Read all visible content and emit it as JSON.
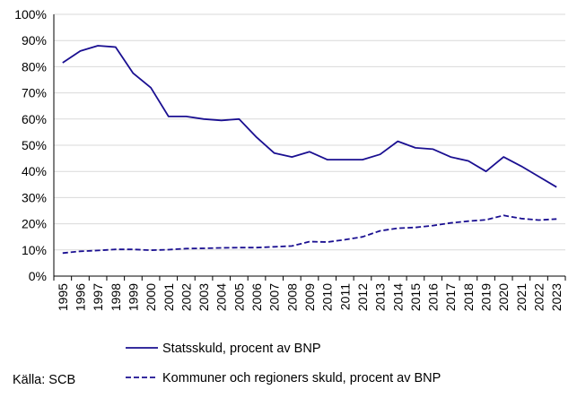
{
  "chart_data": {
    "type": "line",
    "title": "",
    "xlabel": "",
    "ylabel": "",
    "ylim": [
      0,
      100
    ],
    "yticks": [
      "0%",
      "10%",
      "20%",
      "30%",
      "40%",
      "50%",
      "60%",
      "70%",
      "80%",
      "90%",
      "100%"
    ],
    "x": [
      "1995",
      "1996",
      "1997",
      "1998",
      "1999",
      "2000",
      "2001",
      "2002",
      "2003",
      "2004",
      "2005",
      "2006",
      "2007",
      "2008",
      "2009",
      "2010",
      "2011",
      "2012",
      "2013",
      "2014",
      "2015",
      "2016",
      "2017",
      "2018",
      "2019",
      "2020",
      "2021",
      "2022",
      "2023"
    ],
    "grid": "horizontal",
    "legend_position": "bottom",
    "series": [
      {
        "name": "Statsskuld, procent av BNP",
        "style": "solid",
        "color": "#1a0f91",
        "values": [
          81.5,
          86,
          88,
          87.5,
          77.5,
          72,
          61,
          61,
          60,
          59.5,
          60,
          53,
          47,
          45.5,
          47.5,
          44.5,
          44.5,
          44.5,
          46.5,
          51.5,
          49,
          48.5,
          45.5,
          44,
          40,
          45.5,
          42,
          38,
          34
        ]
      },
      {
        "name": "Kommuner och regioners skuld, procent av BNP",
        "style": "dashed",
        "color": "#1a0f91",
        "values": [
          8.8,
          9.5,
          9.8,
          10.2,
          10.2,
          9.9,
          10.1,
          10.5,
          10.6,
          10.8,
          10.9,
          10.9,
          11.2,
          11.5,
          13.2,
          13,
          13.9,
          15,
          17.3,
          18.3,
          18.6,
          19.3,
          20.3,
          21,
          21.5,
          23.2,
          22,
          21.4,
          21.8
        ]
      }
    ]
  },
  "source_label": "Källa: SCB"
}
